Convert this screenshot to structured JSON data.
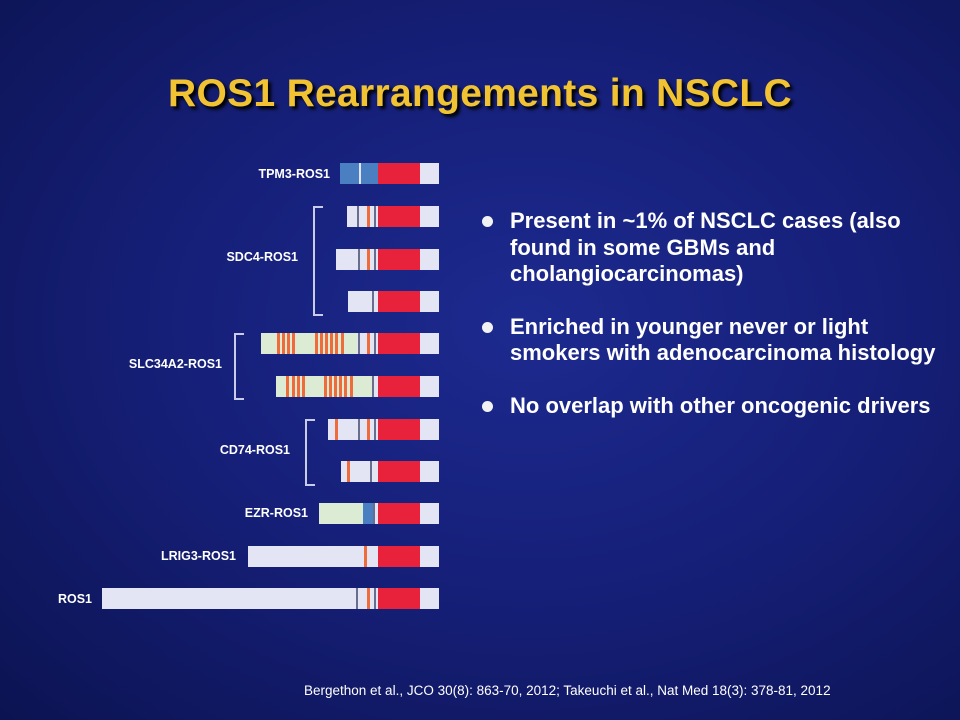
{
  "title": "ROS1 Rearrangements in NSCLC",
  "fusion_labels": {
    "tpm3": "TPM3-ROS1",
    "sdc4": "SDC4-ROS1",
    "slc34a2": "SLC34A2-ROS1",
    "cd74": "CD74-ROS1",
    "ezr": "EZR-ROS1",
    "lrig3": "LRIG3-ROS1",
    "ros1": "ROS1"
  },
  "colors": {
    "background": "#16207a",
    "title": "#f1c232",
    "kinase_domain": "#e8223a",
    "transmembrane": "#f06b3c",
    "partner_blue": "#4a7fc1",
    "partner_green": "#dcebd3",
    "bar_base": "#e3e5f4"
  },
  "bullets": [
    "Present in ~1% of NSCLC cases (also found in some GBMs and cholangiocarcinomas)",
    "Enriched in younger never or light smokers with adenocarcinoma histology",
    "No overlap with other oncogenic drivers"
  ],
  "citation": "Bergethon et al., JCO 30(8): 863-70, 2012; Takeuchi et al., Nat Med 18(3): 378-81, 2012"
}
